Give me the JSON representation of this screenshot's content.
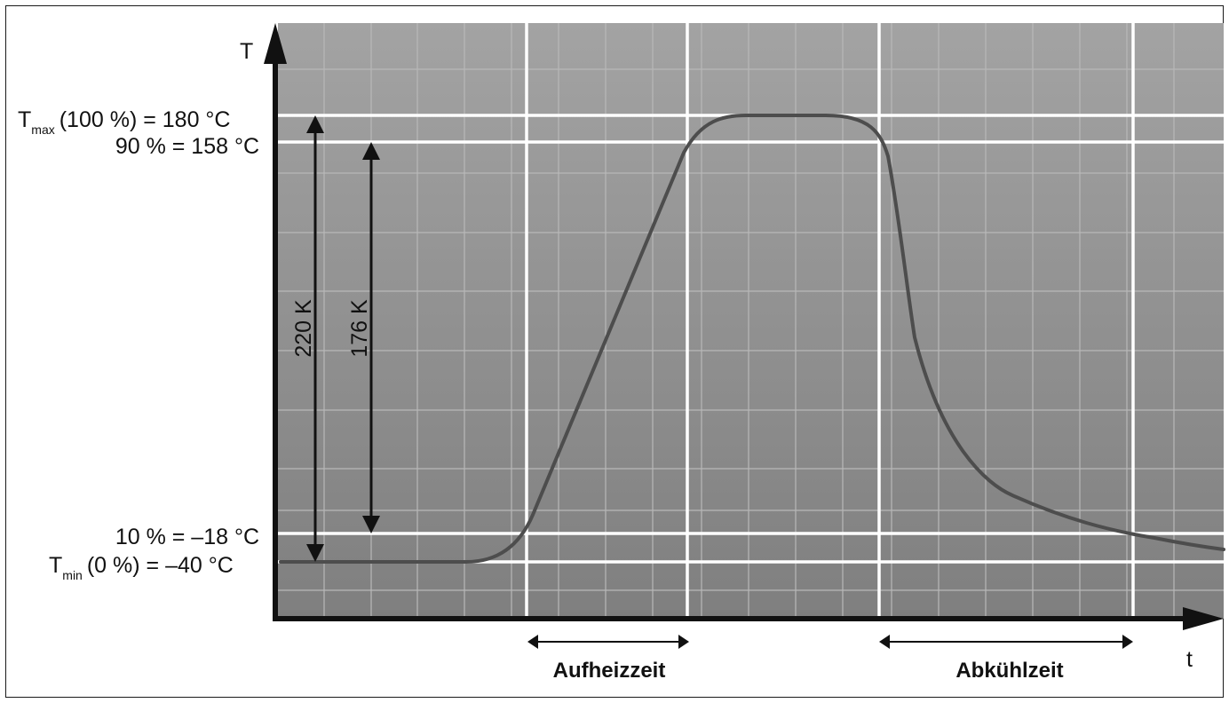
{
  "colors": {
    "plot_background": "#8f8f8f",
    "minor_grid": "#b3b3b3",
    "major_grid": "#ffffff",
    "curve": "#4a4a4a",
    "axis": "#111111"
  },
  "diagram": {
    "axes": {
      "y_label": "T",
      "x_label": "t"
    },
    "levels": {
      "tmax": {
        "prefix": "T",
        "sub": "max",
        "suffix": "(100 %) = 180 °C"
      },
      "p90": {
        "text": "90 % = 158 °C"
      },
      "p10": {
        "text": "10 % = –18 °C"
      },
      "tmin": {
        "prefix": "T",
        "sub": "min",
        "suffix": "(0 %) = –40 °C"
      }
    },
    "spans": {
      "full": "220 K",
      "partial": "176 K"
    },
    "intervals": {
      "heating": "Aufheizzeit",
      "cooling": "Abkühlzeit"
    }
  }
}
